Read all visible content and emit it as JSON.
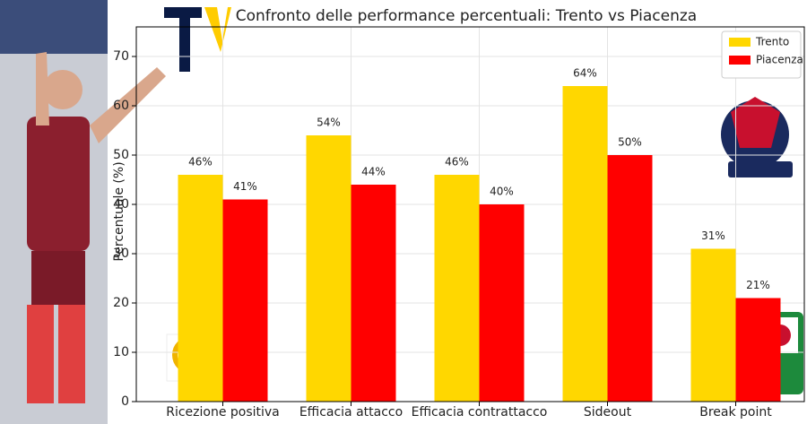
{
  "chart_data": {
    "type": "bar",
    "title": "Confronto delle performance percentuali: Trento vs Piacenza",
    "y_label": "Percentuale (%)",
    "categories": [
      "Ricezione positiva",
      "Efficacia attacco",
      "Efficacia contrattacco",
      "Sideout",
      "Break point"
    ],
    "series": [
      {
        "name": "Trento",
        "color": "#ffd700",
        "values": [
          46,
          54,
          46,
          64,
          31
        ],
        "value_labels": [
          "46%",
          "54%",
          "46%",
          "64%",
          "31%"
        ]
      },
      {
        "name": "Piacenza",
        "color": "#ff0000",
        "values": [
          41,
          44,
          40,
          50,
          21
        ],
        "value_labels": [
          "41%",
          "44%",
          "40%",
          "50%",
          "21%"
        ]
      }
    ],
    "ylim": [
      0,
      76
    ],
    "yticks": [
      0,
      10,
      20,
      30,
      40,
      50,
      60,
      70
    ],
    "grid": true,
    "legend": "upper right"
  }
}
